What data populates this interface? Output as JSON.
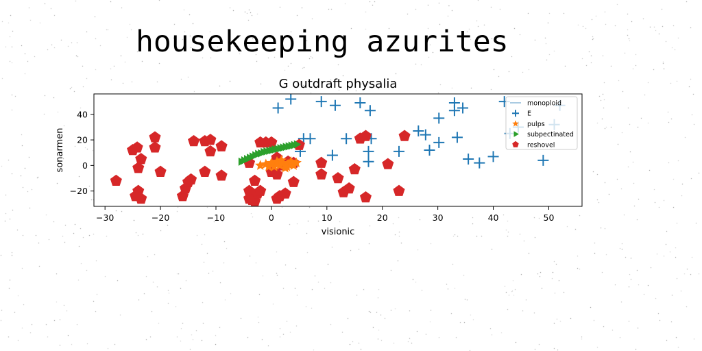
{
  "page_title": "housekeeping azurites",
  "chart_data": {
    "type": "scatter",
    "title": "G outdraft physalia",
    "xlabel": "visionic",
    "ylabel": "sonarmen",
    "xlim": [
      -32,
      56
    ],
    "ylim": [
      -32,
      56
    ],
    "xticks": [
      "−30",
      "−20",
      "−10",
      "0",
      "10",
      "20",
      "30",
      "40",
      "50"
    ],
    "yticks": [
      "−20",
      "0",
      "20",
      "40"
    ],
    "grid": false,
    "legend": {
      "placement": "top-right",
      "entries": [
        "monoploid",
        "E",
        "pulps",
        "subpectinated",
        "reshovel"
      ]
    },
    "colors": {
      "monoploid": "#1f77b4",
      "E": "#1f77b4",
      "pulps": "#ff7f0e",
      "subpectinated": "#2ca02c",
      "reshovel": "#d62728"
    },
    "series": [
      {
        "name": "monoploid",
        "marker": "line",
        "x": [],
        "y": []
      },
      {
        "name": "E",
        "marker": "plus",
        "x": [
          1.2,
          3.5,
          9,
          11.5,
          16,
          17.8,
          5.8,
          7,
          5.2,
          13.5,
          11,
          18,
          17.5,
          17.5,
          26.5,
          27.8,
          23,
          30.2,
          30.2,
          28.5,
          33,
          33,
          33.5,
          34.5,
          35.5,
          37.5,
          40,
          42,
          43,
          44.5,
          49,
          51,
          52
        ],
        "y": [
          45,
          52,
          50,
          47,
          49,
          43,
          21,
          21,
          11,
          21,
          8,
          21,
          11,
          3,
          27,
          24,
          11,
          37,
          18,
          12,
          49,
          43,
          22,
          45,
          5,
          2,
          7,
          50,
          25,
          30,
          4,
          32,
          47
        ]
      },
      {
        "name": "pulps",
        "marker": "star",
        "x": [
          -2,
          -1,
          0,
          0.5,
          1,
          1.5,
          2,
          2.5,
          3,
          3.5,
          4,
          4.5,
          -0.5,
          1.8,
          2.8,
          3.8
        ],
        "y": [
          0,
          1,
          2,
          -1,
          3,
          0,
          2,
          -2,
          1,
          3,
          0,
          2,
          -1,
          4,
          -1,
          1
        ]
      },
      {
        "name": "subpectinated",
        "marker": "triangle-right",
        "x": [
          -5.5,
          -5,
          -4.5,
          -4,
          -3.5,
          -3,
          -2.5,
          -2,
          -1.5,
          -1,
          -0.5,
          0,
          0.5,
          1,
          1.5,
          2,
          2.5,
          3,
          3.5,
          4,
          4.5
        ],
        "y": [
          3,
          4,
          5,
          6,
          7,
          8,
          9,
          9.5,
          10.5,
          11,
          11.5,
          12,
          12.5,
          13,
          13.5,
          14,
          14.5,
          15,
          15.5,
          16,
          16.5
        ]
      },
      {
        "name": "reshovel",
        "marker": "pentagon",
        "x": [
          -28,
          -25,
          -24.2,
          -24,
          -23.5,
          -24,
          -24.5,
          -23.5,
          -21,
          -21,
          -20,
          -16,
          -15.5,
          -15,
          -14.5,
          -14,
          -12,
          -12,
          -11,
          -11,
          -9,
          -9,
          -4,
          -4,
          -4,
          -3.5,
          -3,
          -3,
          -2.5,
          -2,
          -2,
          -1,
          0,
          0,
          1,
          1,
          1,
          1.5,
          2,
          2.5,
          3,
          4,
          4,
          5,
          9,
          9,
          12,
          13,
          14,
          15,
          16,
          17,
          17,
          21,
          23,
          24
        ],
        "y": [
          -12,
          12,
          14,
          -2,
          5,
          -20,
          -24,
          -26,
          22,
          14,
          -5,
          -24,
          -18,
          -13,
          -11,
          19,
          19,
          -5,
          11,
          20,
          -8,
          15,
          -20,
          -26,
          2,
          -27,
          -28,
          -12,
          -22,
          18,
          -20,
          18,
          -5,
          18,
          -26,
          6,
          -7,
          -24,
          0,
          -22,
          3,
          -13,
          2,
          16,
          2,
          -7,
          -10,
          -21,
          -18,
          -3,
          21,
          23,
          -25,
          1,
          -20,
          23
        ]
      }
    ]
  }
}
